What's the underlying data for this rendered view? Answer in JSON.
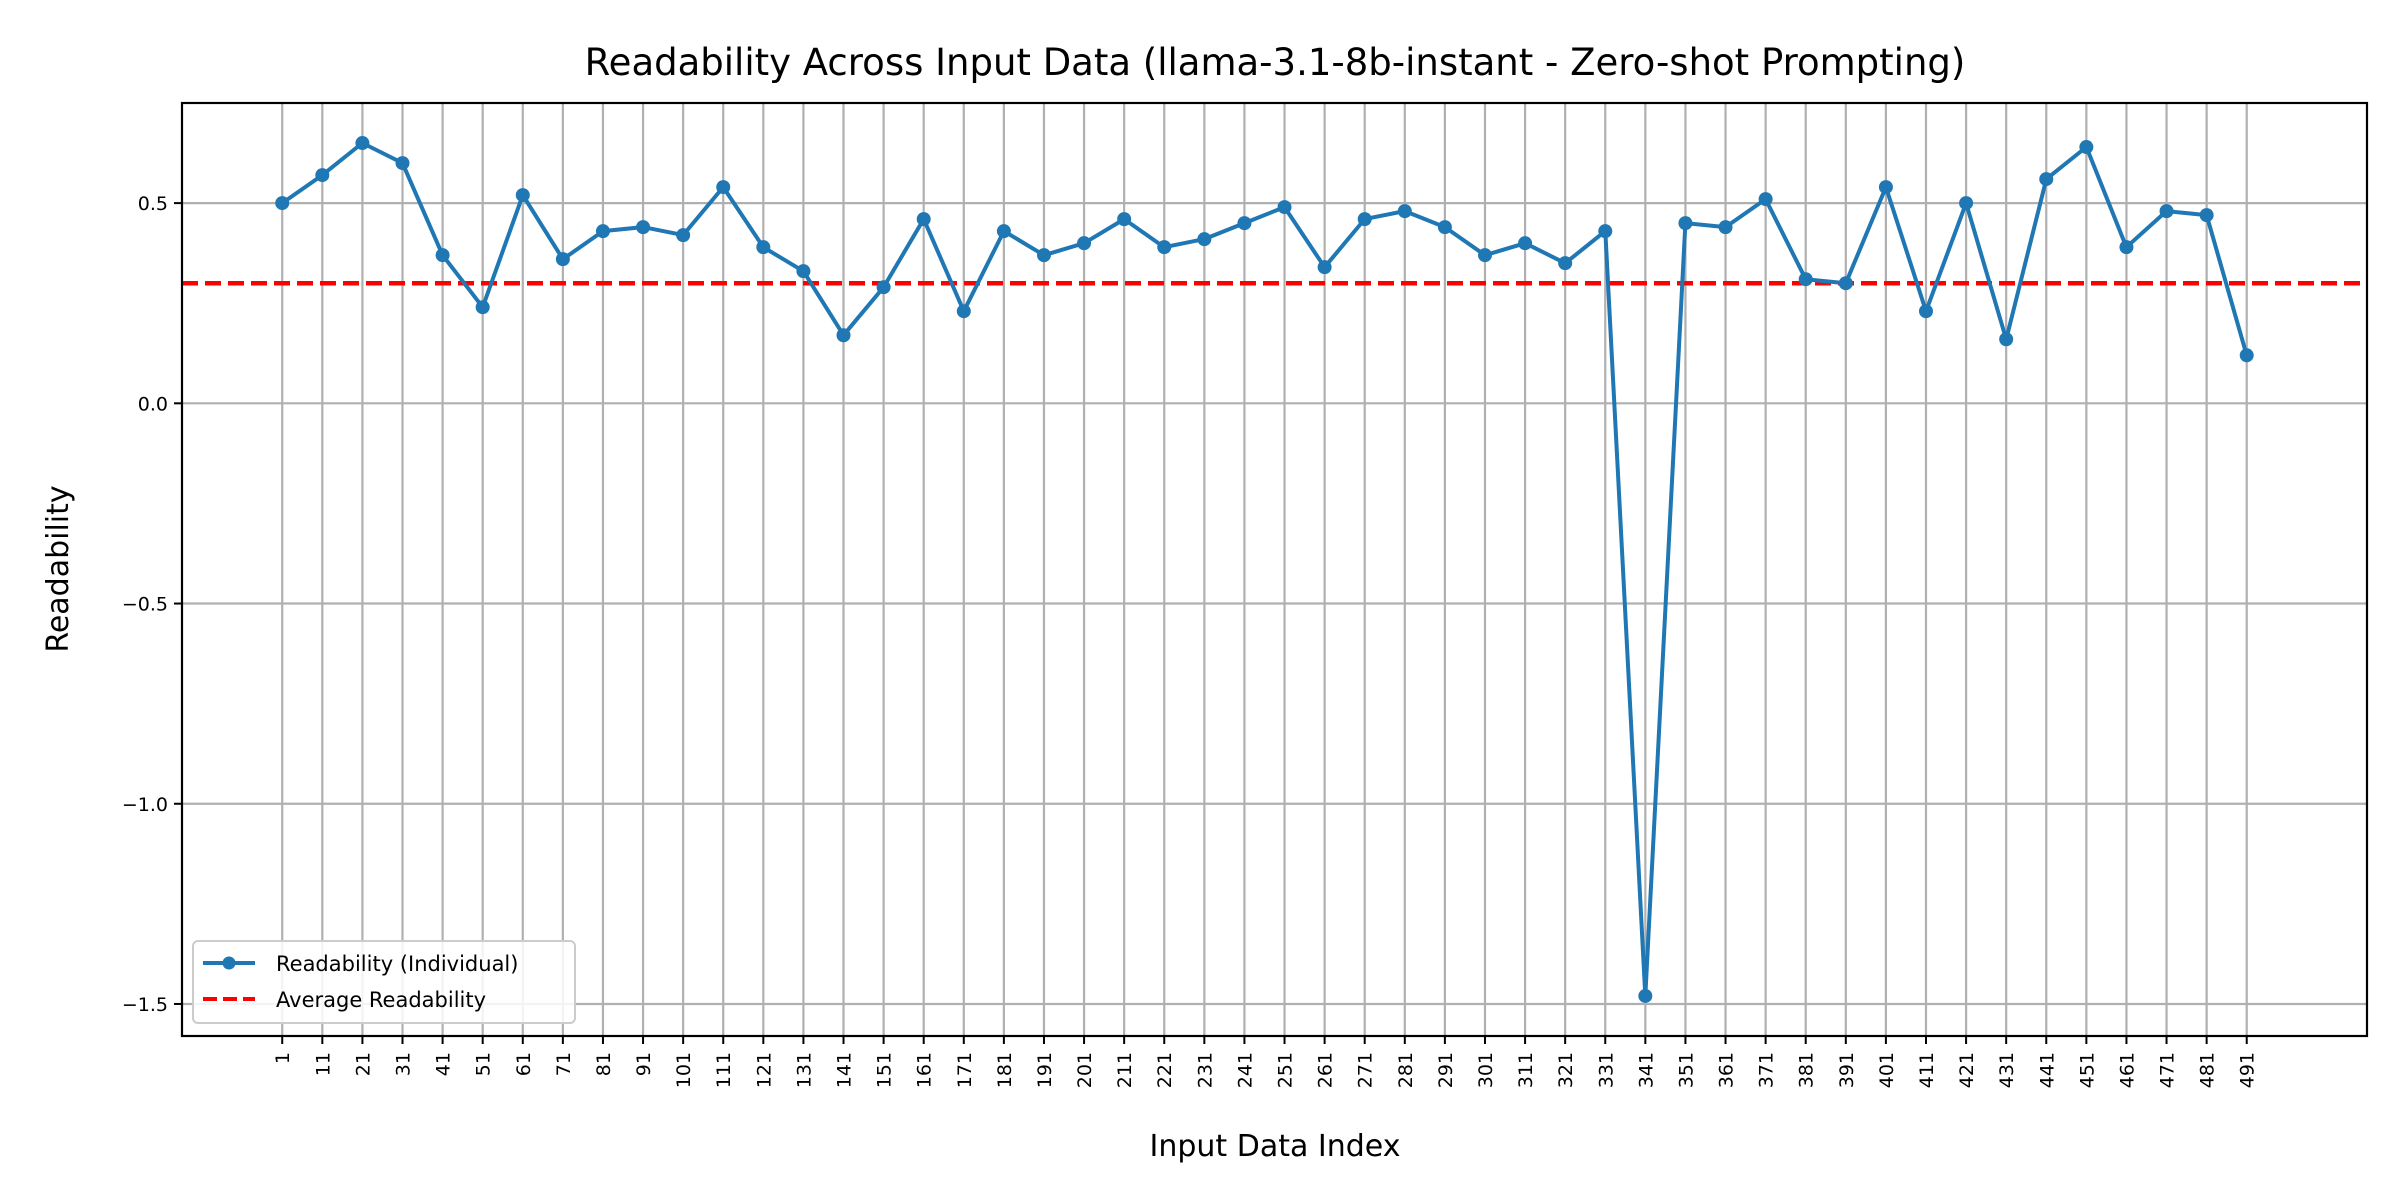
{
  "chart_data": {
    "type": "line",
    "title": "Readability Across Input Data (llama-3.1-8b-instant - Zero-shot Prompting)",
    "xlabel": "Input Data Index",
    "ylabel": "Readability",
    "xlim": [
      -24,
      521
    ],
    "ylim": [
      -1.58,
      0.75
    ],
    "x_ticks": [
      1,
      11,
      21,
      31,
      41,
      51,
      61,
      71,
      81,
      91,
      101,
      111,
      121,
      131,
      141,
      151,
      161,
      171,
      181,
      191,
      201,
      211,
      221,
      231,
      241,
      251,
      261,
      271,
      281,
      291,
      301,
      311,
      321,
      331,
      341,
      351,
      361,
      371,
      381,
      391,
      401,
      411,
      421,
      431,
      441,
      451,
      461,
      471,
      481,
      491
    ],
    "y_ticks": [
      0.5,
      0.0,
      -0.5,
      -1.0,
      -1.5
    ],
    "y_tick_labels": [
      "0.5",
      "0.0",
      "−0.5",
      "−1.0",
      "−1.5"
    ],
    "grid": true,
    "legend_position": "lower-left",
    "series": [
      {
        "name": "Readability (Individual)",
        "color": "#1f77b4",
        "marker": "circle",
        "style": "solid",
        "x": [
          1,
          11,
          21,
          31,
          41,
          51,
          61,
          71,
          81,
          91,
          101,
          111,
          121,
          131,
          141,
          151,
          161,
          171,
          181,
          191,
          201,
          211,
          221,
          231,
          241,
          251,
          261,
          271,
          281,
          291,
          301,
          311,
          321,
          331,
          341,
          351,
          361,
          371,
          381,
          391,
          401,
          411,
          421,
          431,
          441,
          451,
          461,
          471,
          481,
          491
        ],
        "values": [
          0.5,
          0.57,
          0.65,
          0.6,
          0.37,
          0.24,
          0.52,
          0.36,
          0.43,
          0.44,
          0.42,
          0.54,
          0.39,
          0.33,
          0.17,
          0.29,
          0.46,
          0.23,
          0.43,
          0.37,
          0.4,
          0.46,
          0.39,
          0.41,
          0.45,
          0.49,
          0.34,
          0.46,
          0.48,
          0.44,
          0.37,
          0.4,
          0.35,
          0.43,
          -1.48,
          0.45,
          0.44,
          0.51,
          0.31,
          0.3,
          0.54,
          0.23,
          0.5,
          0.16,
          0.56,
          0.64,
          0.39,
          0.48,
          0.47,
          0.12
        ]
      },
      {
        "name": "Average Readability",
        "color": "#ff0000",
        "style": "dashed",
        "constant": 0.3
      }
    ]
  }
}
